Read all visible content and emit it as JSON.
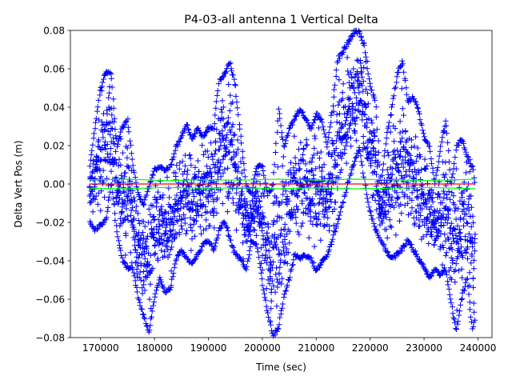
{
  "chart_data": {
    "type": "scatter",
    "title": "P4-03-all antenna 1 Vertical Delta",
    "xlabel": "Time (sec)",
    "ylabel": "Delta Vert Pos (m)",
    "xlim": [
      164400,
      242600
    ],
    "ylim": [
      -0.08,
      0.08
    ],
    "xticks": [
      170000,
      180000,
      190000,
      200000,
      210000,
      220000,
      230000,
      240000
    ],
    "xtick_labels": [
      "170000",
      "180000",
      "190000",
      "200000",
      "210000",
      "220000",
      "230000",
      "240000"
    ],
    "yticks": [
      -0.08,
      -0.06,
      -0.04,
      -0.02,
      0.0,
      0.02,
      0.04,
      0.06,
      0.08
    ],
    "ytick_labels": [
      "−0.08",
      "−0.06",
      "−0.04",
      "−0.02",
      "0.00",
      "0.02",
      "0.04",
      "0.06",
      "0.08"
    ],
    "grid": false,
    "legend": false,
    "series": [
      {
        "marker": "+",
        "color": "#0000ff",
        "x_range": [
          168000,
          239500
        ],
        "envelope": {
          "x": [
            168000,
            169000,
            170000,
            171000,
            172000,
            173000,
            174000,
            175000,
            176000,
            177000,
            178000,
            179000,
            180000,
            181000,
            182000,
            183000,
            184000,
            185000,
            186000,
            187000,
            188000,
            189000,
            190000,
            191000,
            192000,
            193000,
            194000,
            195000,
            196000,
            197000,
            198000,
            199000,
            200000,
            201000,
            202000,
            203000,
            204000,
            205000,
            206000,
            207000,
            208000,
            209000,
            210000,
            211000,
            212000,
            213000,
            214000,
            215000,
            216000,
            217000,
            218000,
            219000,
            220000,
            221000,
            222000,
            223000,
            224000,
            225000,
            226000,
            227000,
            228000,
            229000,
            230000,
            231000,
            232000,
            233000,
            234000,
            235000,
            236000,
            237000,
            238000,
            239000,
            239500
          ],
          "upper": [
            0.01,
            0.03,
            0.05,
            0.06,
            0.058,
            0.02,
            0.03,
            0.034,
            0.01,
            -0.005,
            -0.01,
            0.0,
            0.008,
            0.01,
            0.008,
            0.01,
            0.02,
            0.025,
            0.032,
            0.024,
            0.03,
            0.025,
            0.03,
            0.03,
            0.055,
            0.058,
            0.064,
            0.052,
            0.025,
            0.0,
            -0.005,
            0.01,
            0.01,
            -0.005,
            0.0,
            0.04,
            0.02,
            0.03,
            0.035,
            0.04,
            0.035,
            0.03,
            0.037,
            0.035,
            0.02,
            0.04,
            0.066,
            0.07,
            0.075,
            0.08,
            0.08,
            0.072,
            0.052,
            0.044,
            0.0,
            0.025,
            0.04,
            0.058,
            0.065,
            0.044,
            0.046,
            0.04,
            0.025,
            0.02,
            0.0,
            0.018,
            0.035,
            0.0,
            0.02,
            0.025,
            0.015,
            0.01,
            0.0
          ],
          "lower": [
            -0.02,
            -0.025,
            -0.022,
            -0.02,
            0.0,
            -0.025,
            -0.04,
            -0.045,
            -0.045,
            -0.06,
            -0.07,
            -0.078,
            -0.06,
            -0.05,
            -0.058,
            -0.055,
            -0.04,
            -0.035,
            -0.04,
            -0.042,
            -0.038,
            -0.032,
            -0.03,
            -0.035,
            -0.025,
            -0.02,
            -0.03,
            -0.038,
            -0.04,
            -0.045,
            -0.03,
            -0.032,
            -0.052,
            -0.068,
            -0.08,
            -0.076,
            -0.06,
            -0.05,
            -0.038,
            -0.04,
            -0.038,
            -0.04,
            -0.046,
            -0.042,
            -0.038,
            -0.03,
            -0.02,
            -0.01,
            0.0,
            0.01,
            0.018,
            0.0,
            -0.015,
            -0.025,
            -0.03,
            -0.035,
            -0.04,
            -0.038,
            -0.035,
            -0.03,
            -0.035,
            -0.04,
            -0.044,
            -0.05,
            -0.045,
            -0.048,
            -0.045,
            -0.062,
            -0.078,
            -0.06,
            -0.05,
            -0.078,
            -0.07
          ]
        }
      },
      {
        "line_style": "solid",
        "color": "#00ff00",
        "x": [
          168000,
          175000,
          182000,
          189000,
          196000,
          203000,
          210000,
          217000,
          224000,
          231000,
          239500
        ],
        "values": [
          0.0022,
          0.0025,
          0.0018,
          0.0022,
          0.002,
          0.0025,
          0.002,
          0.0025,
          0.0022,
          0.0018,
          0.0025
        ]
      },
      {
        "line_style": "solid",
        "color": "#00ff00",
        "x": [
          168000,
          175000,
          182000,
          189000,
          196000,
          203000,
          210000,
          217000,
          224000,
          231000,
          239500
        ],
        "values": [
          -0.0022,
          -0.0025,
          -0.0018,
          -0.0022,
          -0.002,
          -0.0025,
          -0.002,
          -0.0025,
          -0.0022,
          -0.0018,
          -0.0025
        ]
      },
      {
        "line_style": "solid",
        "color": "#ff0000",
        "x": [
          168000,
          239500
        ],
        "values": [
          0.0,
          0.0
        ]
      }
    ]
  }
}
